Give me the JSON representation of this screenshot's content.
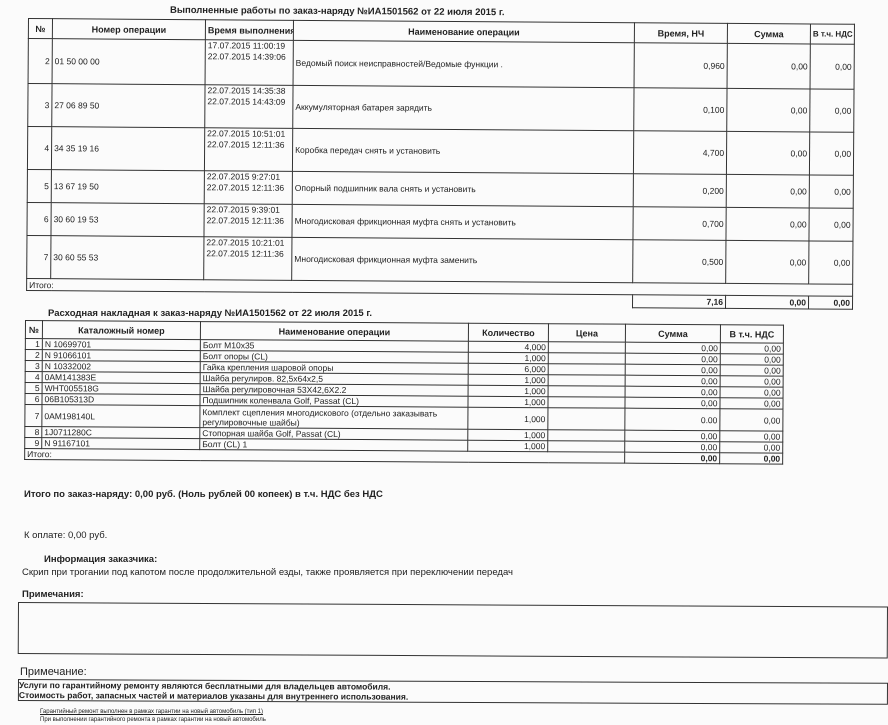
{
  "works": {
    "title": "Выполненные работы по заказ-наряду №ИА1501562 от 22 июля 2015 г.",
    "headers": [
      "№",
      "Номер операции",
      "Время выполнения",
      "Наименование операции",
      "Время, НЧ",
      "Сумма",
      "В т.ч. НДС"
    ],
    "rows": [
      {
        "n": "2",
        "code": "01 50 00 00",
        "time": "17.07.2015 11:00:19 22.07.2015 14:39:06",
        "name": "Ведомый поиск неисправностей/Ведомые функции .",
        "hours": "0,960",
        "sum": "0,00",
        "vat": "0,00"
      },
      {
        "n": "3",
        "code": "27 06 89 50",
        "time": "22.07.2015 14:35:38 22.07.2015 14:43:09",
        "name": "Аккумуляторная батарея зарядить",
        "hours": "0,100",
        "sum": "0,00",
        "vat": "0,00"
      },
      {
        "n": "4",
        "code": "34 35 19 16",
        "time": "22.07.2015 10:51:01 22.07.2015 12:11:36",
        "name": "Коробка передач снять и установить",
        "hours": "4,700",
        "sum": "0,00",
        "vat": "0,00"
      },
      {
        "n": "5",
        "code": "13 67 19 50",
        "time": "22.07.2015 9:27:01 22.07.2015 12:11:36",
        "name": "Опорный подшипник вала снять и установить",
        "hours": "0,200",
        "sum": "0,00",
        "vat": "0,00"
      },
      {
        "n": "6",
        "code": "30 60 19 53",
        "time": "22.07.2015 9:39:01 22.07.2015 12:11:36",
        "name": "Многодисковая фрикционная муфта снять и установить",
        "hours": "0,700",
        "sum": "0,00",
        "vat": "0,00"
      },
      {
        "n": "7",
        "code": "30 60 55 53",
        "time": "22.07.2015 10:21:01 22.07.2015 12:11:36",
        "name": "Многодисковая фрикционная муфта заменить",
        "hours": "0,500",
        "sum": "0,00",
        "vat": "0,00"
      }
    ],
    "total_label": "Итого:",
    "total_hours": "7,16",
    "total_sum": "0,00",
    "total_vat": "0,00"
  },
  "parts": {
    "title": "Расходная накладная к заказ-наряду №ИА1501562 от 22 июля 2015 г.",
    "headers": [
      "№",
      "Каталожный номер",
      "Наименование операции",
      "Количество",
      "Цена",
      "Сумма",
      "В т.ч. НДС"
    ],
    "rows": [
      {
        "n": "1",
        "code": "N  10699701",
        "name": "Болт M10x35",
        "qty": "4,000",
        "sum": "0,00",
        "vat": "0,00"
      },
      {
        "n": "2",
        "code": "N  91066101",
        "name": "Болт опоры (CL)",
        "qty": "1,000",
        "sum": "0,00",
        "vat": "0,00"
      },
      {
        "n": "3",
        "code": "N  10332002",
        "name": "Гайка крепления шаровой опоры",
        "qty": "6,000",
        "sum": "0,00",
        "vat": "0,00"
      },
      {
        "n": "4",
        "code": "0AM141383E",
        "name": "Шайба регулиров. 82,5x64x2,5",
        "qty": "1,000",
        "sum": "0,00",
        "vat": "0,00"
      },
      {
        "n": "5",
        "code": "WHT005518G",
        "name": "Шайба регулировочная 53X42,6X2.2",
        "qty": "1,000",
        "sum": "0,00",
        "vat": "0,00"
      },
      {
        "n": "6",
        "code": "06B105313D",
        "name": "Подшипник коленвала Golf, Passat (CL)",
        "qty": "1,000",
        "sum": "0,00",
        "vat": "0,00"
      },
      {
        "n": "7",
        "code": "0AM198140L",
        "name": "Комплект сцепления многодискового (отдельно заказывать регулировочные шайбы)",
        "qty": "1,000",
        "sum": "0.00",
        "vat": "0,00"
      },
      {
        "n": "8",
        "code": "1J0711280C",
        "name": "Стопорная шайба Golf, Passat (CL)",
        "qty": "1,000",
        "sum": "0,00",
        "vat": "0,00"
      },
      {
        "n": "9",
        "code": "N  91167101",
        "name": "Болт (CL) 1",
        "qty": "1,000",
        "sum": "0,00",
        "vat": "0,00"
      }
    ],
    "total_label": "Итого:",
    "total_sum": "0,00",
    "total_vat": "0,00"
  },
  "summary": {
    "order_total": "Итого по заказ-наряду: 0,00 руб. (Ноль рублей 00 копеек) в т.ч. НДС без НДС",
    "to_pay": "К оплате: 0,00 руб.",
    "customer_info_label": "Информация заказчика:",
    "customer_info": "Скрип при трогании под капотом после продолжительной езды, также проявляется при переключении передач",
    "remarks_label": "Примечания:",
    "note_label": "Примечание:",
    "note_line1": "Услуги по гарантийному ремонту являются бесплатными для владельцев автомобиля.",
    "note_line2": "Стоимость работ, запасных частей и материалов указаны для внутреннего использования.",
    "footer_line1": "Гарантийный ремонт выполнен в рамках гарантии на новый автомобиль (тип 1)",
    "footer_line2": "При выполнении гарантийного ремонта в рамках гарантии на новый автомобиль"
  }
}
